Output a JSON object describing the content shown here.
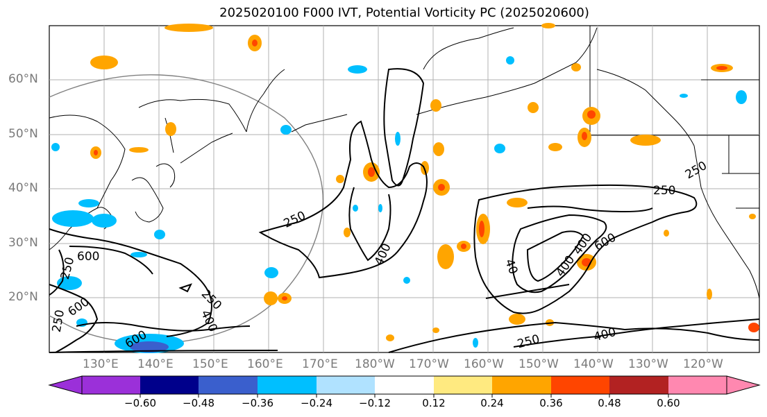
{
  "title": "2025020100 F000 IVT, Potential Vorticity PC (2025020600)",
  "lat_labels": [
    "60°N",
    "50°N",
    "40°N",
    "30°N",
    "20°N"
  ],
  "lon_labels": [
    "130°E",
    "140°E",
    "150°E",
    "160°E",
    "170°E",
    "180°W",
    "170°W",
    "160°W",
    "150°W",
    "140°W",
    "130°W",
    "120°W"
  ],
  "colorbar": {
    "ticks": [
      "−0.60",
      "−0.48",
      "−0.36",
      "−0.24",
      "−0.12",
      "0.12",
      "0.24",
      "0.36",
      "0.48",
      "0.60"
    ],
    "colors": [
      "#9b30d9",
      "#00008b",
      "#3a5fcd",
      "#00bfff",
      "#b0e2ff",
      "#ffffff",
      "#ffea80",
      "#ffa500",
      "#ff4500",
      "#b22222",
      "#ff88b0"
    ]
  },
  "contour_labels": [
    "250",
    "250",
    "250",
    "250",
    "250",
    "400",
    "400",
    "400",
    "600",
    "600",
    "600",
    "600",
    "250",
    "400",
    "250",
    "40",
    "400",
    "400",
    "250"
  ]
}
